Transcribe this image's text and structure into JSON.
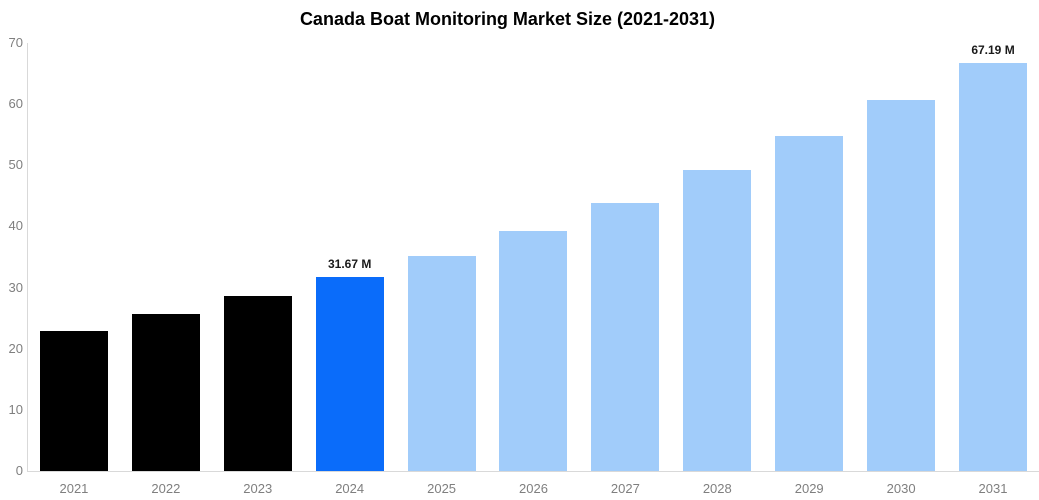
{
  "chart_data": {
    "type": "bar",
    "title": "Canada Boat Monitoring Market Size (2021-2031)",
    "unit": "M",
    "categories": [
      "2021",
      "2022",
      "2023",
      "2024",
      "2025",
      "2026",
      "2027",
      "2028",
      "2029",
      "2030",
      "2031"
    ],
    "values": [
      22.9,
      25.6,
      28.6,
      31.67,
      35.2,
      39.2,
      43.9,
      49.2,
      54.8,
      60.7,
      67.19
    ],
    "value_labels": [
      "",
      "",
      "",
      "31.67 M",
      "",
      "",
      "",
      "",
      "",
      "",
      "67.19 M"
    ],
    "bar_roles": [
      "historical",
      "historical",
      "historical",
      "current",
      "forecast",
      "forecast",
      "forecast",
      "forecast",
      "forecast",
      "forecast",
      "forecast"
    ],
    "ylim": [
      0,
      70
    ],
    "yticks": [
      0,
      10,
      20,
      30,
      40,
      50,
      60,
      70
    ],
    "xlabel": "",
    "ylabel": "",
    "grid": false,
    "legend": false,
    "colors": {
      "historical": "#000000",
      "current": "#0a6cfa",
      "forecast": "#a1ccfa",
      "axis_line": "#d9d9d9",
      "tick_label": "#7f7f7f",
      "value_label": "#1a1a1a",
      "title": "#000000",
      "background": "#ffffff"
    }
  }
}
